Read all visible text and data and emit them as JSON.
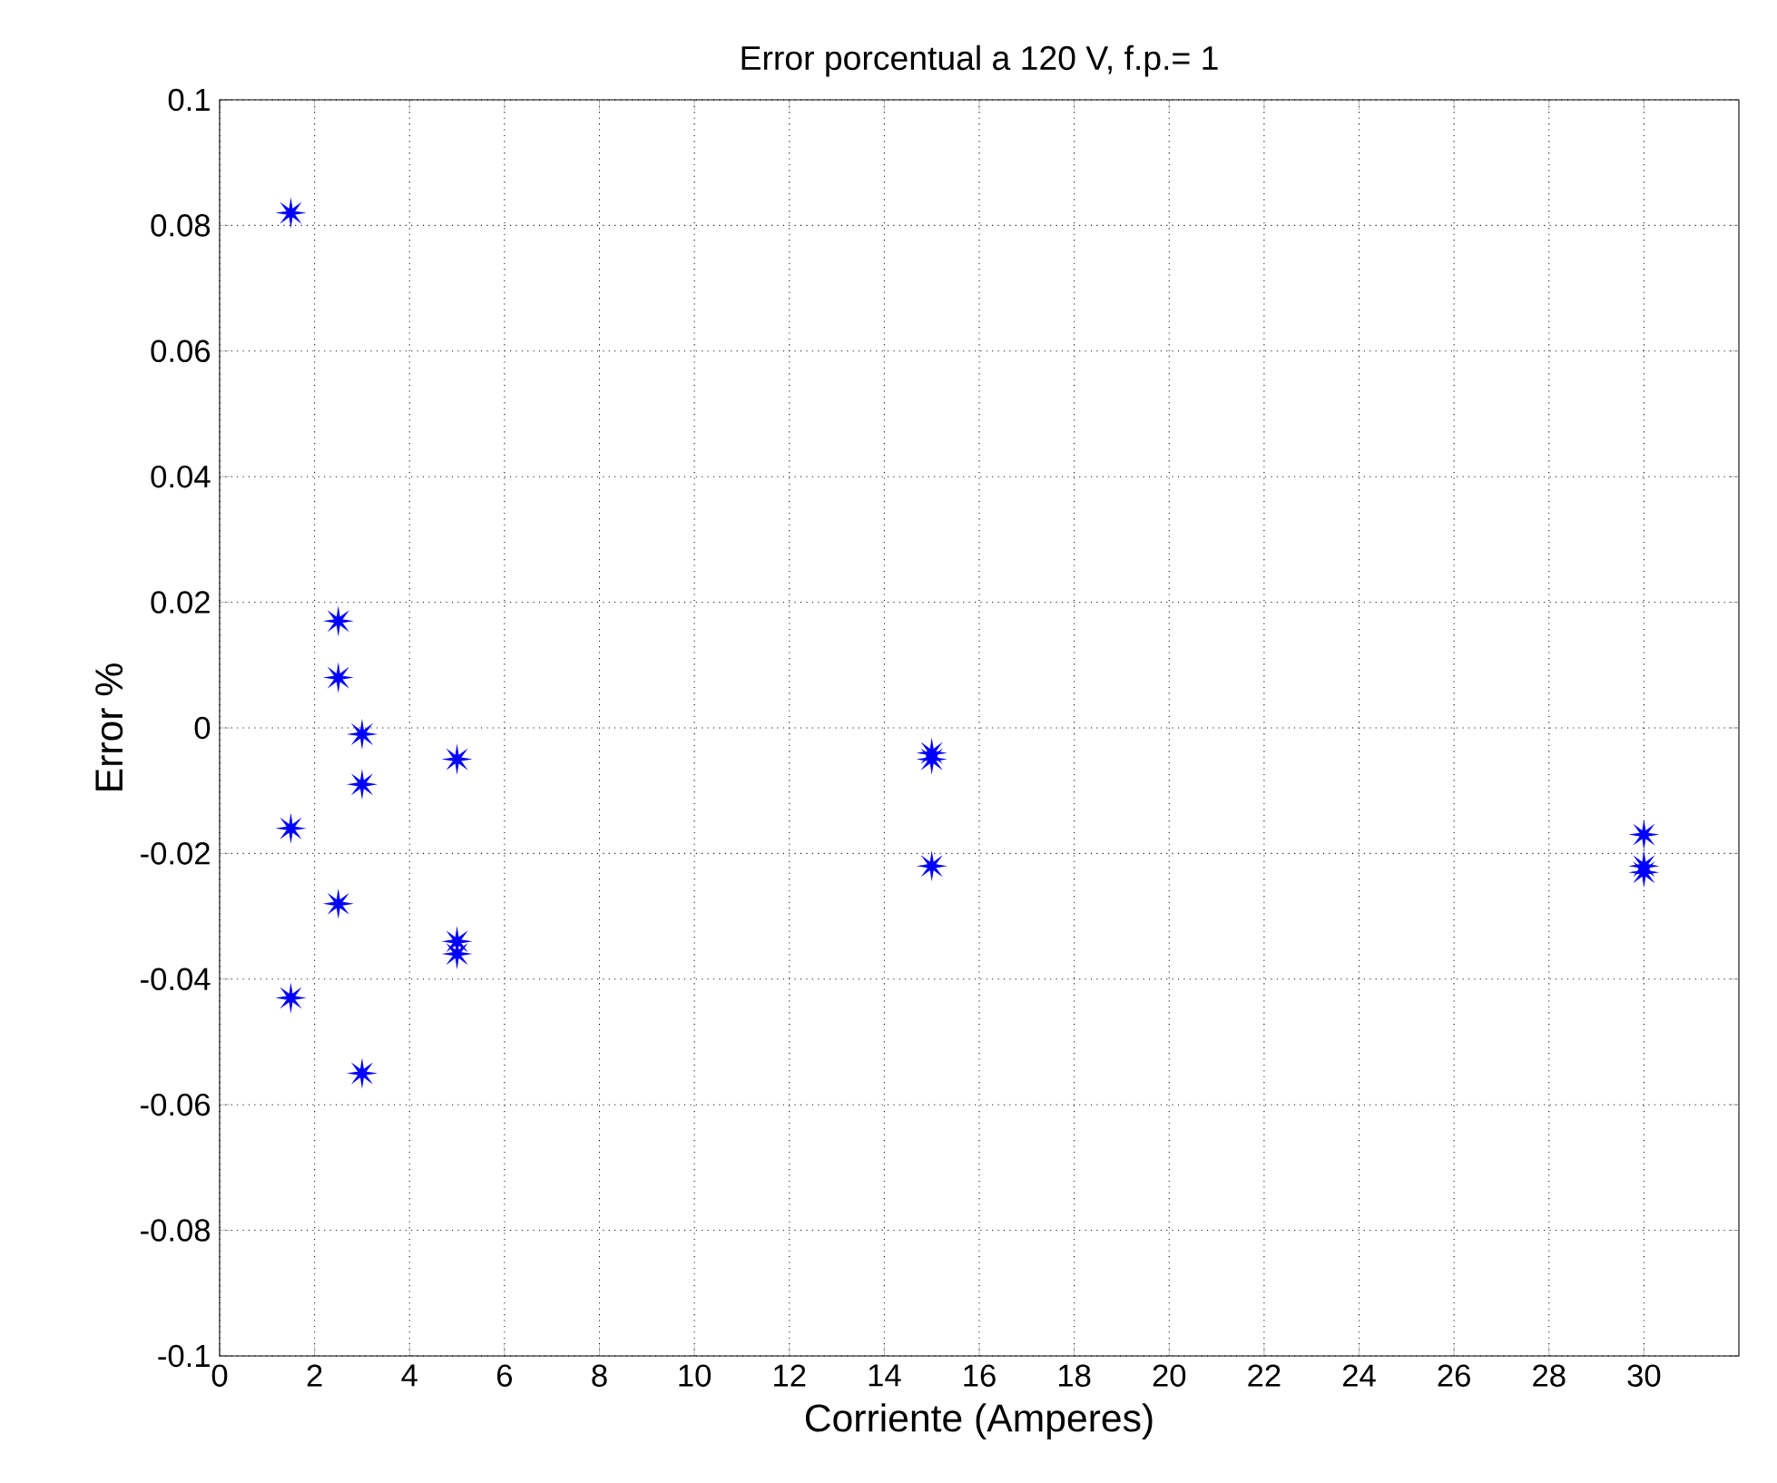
{
  "chart_data": {
    "type": "scatter",
    "title": "Error porcentual a 120 V, f.p.= 1",
    "xlabel": "Corriente (Amperes)",
    "ylabel": "Error %",
    "series": [
      {
        "color": "#0000ff",
        "x": [
          1.5,
          1.5,
          1.5,
          2.5,
          2.5,
          2.5,
          3,
          3,
          3,
          5,
          5,
          5,
          15,
          15,
          15,
          30,
          30,
          30
        ],
        "values": [
          0.082,
          -0.016,
          -0.043,
          0.017,
          0.008,
          -0.028,
          -0.001,
          -0.009,
          -0.055,
          -0.005,
          -0.034,
          -0.036,
          -0.004,
          -0.005,
          -0.022,
          -0.017,
          -0.022,
          -0.023
        ]
      }
    ],
    "xlim": [
      0,
      32
    ],
    "xticks": [
      0,
      2,
      4,
      6,
      8,
      10,
      12,
      14,
      16,
      18,
      20,
      22,
      24,
      26,
      28,
      30
    ],
    "ylim": [
      -0.1,
      0.1
    ],
    "yticks": [
      -0.1,
      -0.08,
      -0.06,
      -0.04,
      -0.02,
      0,
      0.02,
      0.04,
      0.06,
      0.08,
      0.1
    ],
    "grid": true,
    "marker": "star",
    "line_style": "dotted"
  }
}
